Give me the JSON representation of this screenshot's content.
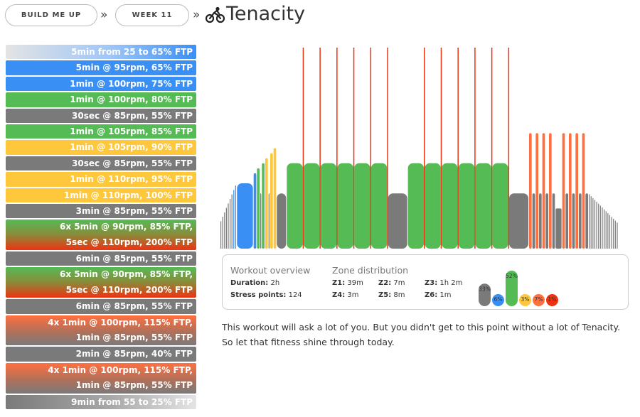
{
  "breadcrumb": {
    "item1": "BUILD ME UP",
    "item2": "WEEK 11",
    "sep": "»"
  },
  "title": "Tenacity",
  "icons": {
    "title_icon": "cyclist-icon"
  },
  "colors": {
    "z1": "#7a7a7a",
    "z2": "#3a8ff5",
    "z3": "#55bb55",
    "z4": "#ffc83c",
    "z5": "#ff7040",
    "z6": "#ee3311"
  },
  "steps": [
    {
      "lines": [
        "5min from 25 to 65% FTP"
      ],
      "style": "ramp-up-blue"
    },
    {
      "lines": [
        "5min @ 95rpm, 65% FTP"
      ],
      "style": "z2"
    },
    {
      "lines": [
        "1min @ 100rpm, 75% FTP"
      ],
      "style": "z2"
    },
    {
      "lines": [
        "1min @ 100rpm, 80% FTP"
      ],
      "style": "z3"
    },
    {
      "lines": [
        "30sec @ 85rpm, 55% FTP"
      ],
      "style": "z1"
    },
    {
      "lines": [
        "1min @ 105rpm, 85% FTP"
      ],
      "style": "z3"
    },
    {
      "lines": [
        "1min @ 105rpm, 90% FTP"
      ],
      "style": "z4"
    },
    {
      "lines": [
        "30sec @ 85rpm, 55% FTP"
      ],
      "style": "z1"
    },
    {
      "lines": [
        "1min @ 110rpm, 95% FTP"
      ],
      "style": "z4"
    },
    {
      "lines": [
        "1min @ 110rpm, 100% FTP"
      ],
      "style": "z4"
    },
    {
      "lines": [
        "3min @ 85rpm, 55% FTP"
      ],
      "style": "z1"
    },
    {
      "lines": [
        "6x 5min @ 90rpm, 85% FTP,",
        "5sec @ 110rpm, 200% FTP"
      ],
      "style": "green-red"
    },
    {
      "lines": [
        "6min @ 85rpm, 55% FTP"
      ],
      "style": "z1"
    },
    {
      "lines": [
        "6x 5min @ 90rpm, 85% FTP,",
        "5sec @ 110rpm, 200% FTP"
      ],
      "style": "green-red"
    },
    {
      "lines": [
        "6min @ 85rpm, 55% FTP"
      ],
      "style": "z1"
    },
    {
      "lines": [
        "4x 1min @ 100rpm, 115% FTP,",
        "1min @ 85rpm, 55% FTP"
      ],
      "style": "red-grey"
    },
    {
      "lines": [
        "2min @ 85rpm, 40% FTP"
      ],
      "style": "z1"
    },
    {
      "lines": [
        "4x 1min @ 100rpm, 115% FTP,",
        "1min @ 85rpm, 55% FTP"
      ],
      "style": "red-grey"
    },
    {
      "lines": [
        "9min from 55 to 25% FTP"
      ],
      "style": "ramp-down-grey"
    }
  ],
  "overview": {
    "heading": "Workout overview",
    "duration_label": "Duration:",
    "duration_value": "2h",
    "stress_label": "Stress points:",
    "stress_value": "124"
  },
  "zones": {
    "heading": "Zone distribution",
    "items": [
      {
        "label": "Z1:",
        "value": "39m"
      },
      {
        "label": "Z2:",
        "value": "7m"
      },
      {
        "label": "Z3:",
        "value": "1h 2m"
      },
      {
        "label": "Z4:",
        "value": "3m"
      },
      {
        "label": "Z5:",
        "value": "8m"
      },
      {
        "label": "Z6:",
        "value": "1m"
      }
    ],
    "percents": [
      {
        "zone": "Z1",
        "pct": 33,
        "label": "33%"
      },
      {
        "zone": "Z2",
        "pct": 6,
        "label": "6%"
      },
      {
        "zone": "Z3",
        "pct": 52,
        "label": "52%"
      },
      {
        "zone": "Z4",
        "pct": 3,
        "label": "3%"
      },
      {
        "zone": "Z5",
        "pct": 7,
        "label": "7%"
      },
      {
        "zone": "Z6",
        "pct": 1,
        "label": "1%"
      }
    ]
  },
  "workout_intervals": [
    {
      "type": "ramp",
      "minutes": 5,
      "from": 25,
      "to": 65
    },
    {
      "type": "steady",
      "minutes": 5,
      "ftp": 65
    },
    {
      "type": "steady",
      "minutes": 1,
      "ftp": 75
    },
    {
      "type": "steady",
      "minutes": 1,
      "ftp": 80
    },
    {
      "type": "steady",
      "minutes": 0.5,
      "ftp": 55
    },
    {
      "type": "steady",
      "minutes": 1,
      "ftp": 85
    },
    {
      "type": "steady",
      "minutes": 1,
      "ftp": 90
    },
    {
      "type": "steady",
      "minutes": 0.5,
      "ftp": 55
    },
    {
      "type": "steady",
      "minutes": 1,
      "ftp": 95
    },
    {
      "type": "steady",
      "minutes": 1,
      "ftp": 100
    },
    {
      "type": "steady",
      "minutes": 3,
      "ftp": 55
    },
    {
      "type": "repeat",
      "count": 6,
      "on_minutes": 5,
      "on_ftp": 85,
      "off_seconds": 5,
      "off_ftp": 200
    },
    {
      "type": "steady",
      "minutes": 6,
      "ftp": 55
    },
    {
      "type": "repeat",
      "count": 6,
      "on_minutes": 5,
      "on_ftp": 85,
      "off_seconds": 5,
      "off_ftp": 200
    },
    {
      "type": "steady",
      "minutes": 6,
      "ftp": 55
    },
    {
      "type": "repeat",
      "count": 4,
      "on_minutes": 1,
      "on_ftp": 115,
      "off_minutes": 1,
      "off_ftp": 55
    },
    {
      "type": "steady",
      "minutes": 2,
      "ftp": 40
    },
    {
      "type": "repeat",
      "count": 4,
      "on_minutes": 1,
      "on_ftp": 115,
      "off_minutes": 1,
      "off_ftp": 55
    },
    {
      "type": "ramp",
      "minutes": 9,
      "from": 55,
      "to": 25
    }
  ],
  "description": "This workout will ask a lot of you. But you didn't get to this point without a lot of Tenacity. So let that fitness shine through today."
}
